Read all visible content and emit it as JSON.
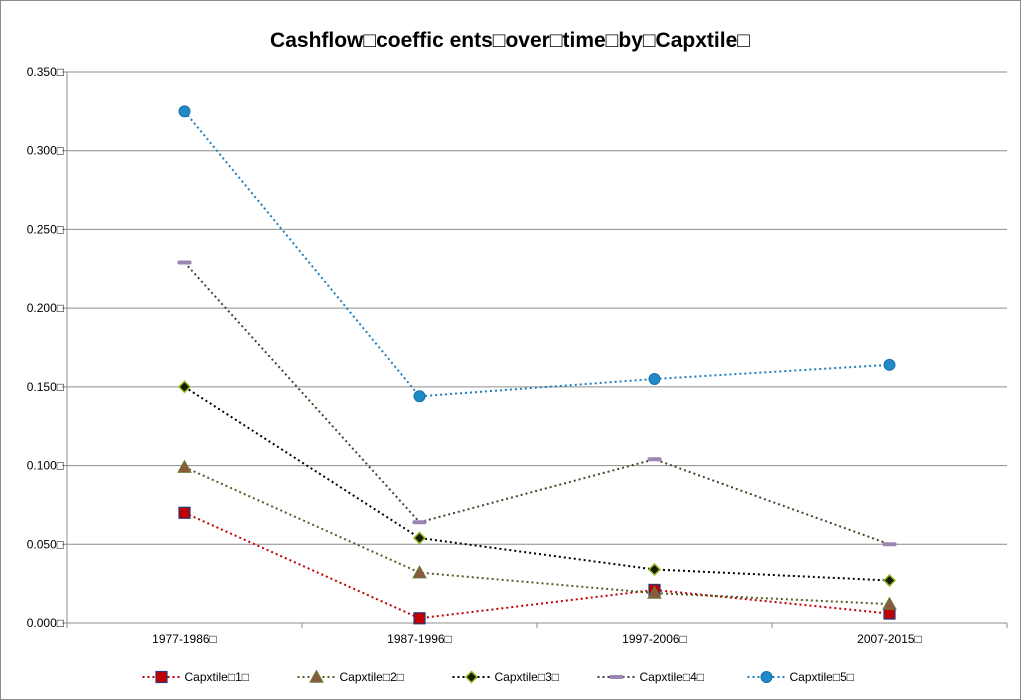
{
  "chart_data": {
    "type": "line",
    "title": "Cashflow□coeffic ents□over□time□by□Capxtile□",
    "xlabel": "",
    "ylabel": "",
    "categories": [
      "1977-1986□",
      "1987-1996□",
      "1997-2006□",
      "2007-2015□"
    ],
    "y_ticks": [
      "0.000□",
      "0.050□",
      "0.100□",
      "0.150□",
      "0.200□",
      "0.250□",
      "0.300□",
      "0.350□"
    ],
    "ylim": [
      0,
      0.35
    ],
    "grid": "horizontal",
    "legend_position": "bottom",
    "series": [
      {
        "name": "Capxtile□1□",
        "values": [
          0.07,
          0.003,
          0.021,
          0.006
        ],
        "color": "#c00000",
        "marker": "square",
        "line_color": "#c00000"
      },
      {
        "name": "Capxtile□2□",
        "values": [
          0.099,
          0.032,
          0.019,
          0.012
        ],
        "color": "#8a5a3c",
        "marker": "triangle",
        "line_color": "#4f6228"
      },
      {
        "name": "Capxtile□3□",
        "values": [
          0.15,
          0.054,
          0.034,
          0.027
        ],
        "color": "#1a1a00",
        "marker": "diamond",
        "line_color": "#000000"
      },
      {
        "name": "Capxtile□4□",
        "values": [
          0.229,
          0.064,
          0.104,
          0.05
        ],
        "color": "#9b86b3",
        "marker": "dash",
        "line_color": "#4a452a"
      },
      {
        "name": "Capxtile□5□",
        "values": [
          0.325,
          0.144,
          0.155,
          0.164
        ],
        "color": "#1f8ac8",
        "marker": "circle",
        "line_color": "#1f7ec0"
      }
    ]
  }
}
